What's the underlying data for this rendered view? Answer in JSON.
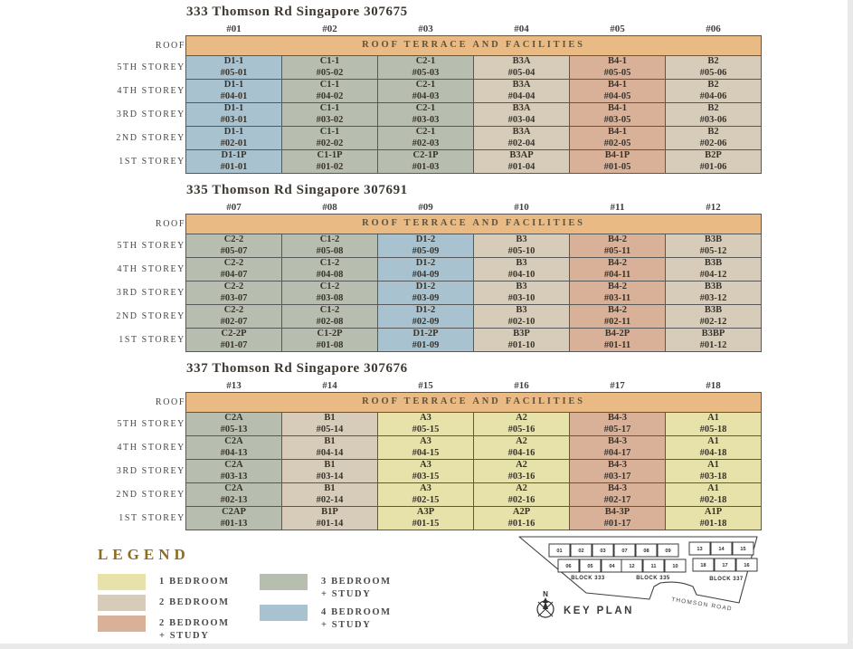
{
  "colors": {
    "roof": "#e9ba83",
    "br1": "#e7e2a9",
    "br2": "#d6ccb9",
    "br2s": "#d9b098",
    "br3s": "#b7beb0",
    "br4s": "#a9c2cf",
    "border": "#585858",
    "legend_title": "#8e6c1c"
  },
  "blocks": [
    {
      "title": "333 Thomson Rd Singapore 307675",
      "columns": [
        "#01",
        "#02",
        "#03",
        "#04",
        "#05",
        "#06"
      ],
      "roof_label": "ROOF",
      "roof_text": "ROOF TERRACE AND FACILITIES",
      "rows": [
        {
          "label": "5TH STOREY",
          "cells": [
            [
              "D1-1",
              "#05-01",
              "4brs"
            ],
            [
              "C1-1",
              "#05-02",
              "3brs"
            ],
            [
              "C2-1",
              "#05-03",
              "3brs"
            ],
            [
              "B3A",
              "#05-04",
              "2br"
            ],
            [
              "B4-1",
              "#05-05",
              "2brs"
            ],
            [
              "B2",
              "#05-06",
              "2br"
            ]
          ]
        },
        {
          "label": "4TH STOREY",
          "cells": [
            [
              "D1-1",
              "#04-01",
              "4brs"
            ],
            [
              "C1-1",
              "#04-02",
              "3brs"
            ],
            [
              "C2-1",
              "#04-03",
              "3brs"
            ],
            [
              "B3A",
              "#04-04",
              "2br"
            ],
            [
              "B4-1",
              "#04-05",
              "2brs"
            ],
            [
              "B2",
              "#04-06",
              "2br"
            ]
          ]
        },
        {
          "label": "3RD STOREY",
          "cells": [
            [
              "D1-1",
              "#03-01",
              "4brs"
            ],
            [
              "C1-1",
              "#03-02",
              "3brs"
            ],
            [
              "C2-1",
              "#03-03",
              "3brs"
            ],
            [
              "B3A",
              "#03-04",
              "2br"
            ],
            [
              "B4-1",
              "#03-05",
              "2brs"
            ],
            [
              "B2",
              "#03-06",
              "2br"
            ]
          ]
        },
        {
          "label": "2ND STOREY",
          "cells": [
            [
              "D1-1",
              "#02-01",
              "4brs"
            ],
            [
              "C1-1",
              "#02-02",
              "3brs"
            ],
            [
              "C2-1",
              "#02-03",
              "3brs"
            ],
            [
              "B3A",
              "#02-04",
              "2br"
            ],
            [
              "B4-1",
              "#02-05",
              "2brs"
            ],
            [
              "B2",
              "#02-06",
              "2br"
            ]
          ]
        },
        {
          "label": "1ST STOREY",
          "cells": [
            [
              "D1-1P",
              "#01-01",
              "4brs"
            ],
            [
              "C1-1P",
              "#01-02",
              "3brs"
            ],
            [
              "C2-1P",
              "#01-03",
              "3brs"
            ],
            [
              "B3AP",
              "#01-04",
              "2br"
            ],
            [
              "B4-1P",
              "#01-05",
              "2brs"
            ],
            [
              "B2P",
              "#01-06",
              "2br"
            ]
          ]
        }
      ]
    },
    {
      "title": "335 Thomson Rd Singapore 307691",
      "columns": [
        "#07",
        "#08",
        "#09",
        "#10",
        "#11",
        "#12"
      ],
      "roof_label": "ROOF",
      "roof_text": "ROOF TERRACE AND FACILITIES",
      "rows": [
        {
          "label": "5TH STOREY",
          "cells": [
            [
              "C2-2",
              "#05-07",
              "3brs"
            ],
            [
              "C1-2",
              "#05-08",
              "3brs"
            ],
            [
              "D1-2",
              "#05-09",
              "4brs"
            ],
            [
              "B3",
              "#05-10",
              "2br"
            ],
            [
              "B4-2",
              "#05-11",
              "2brs"
            ],
            [
              "B3B",
              "#05-12",
              "2br"
            ]
          ]
        },
        {
          "label": "4TH STOREY",
          "cells": [
            [
              "C2-2",
              "#04-07",
              "3brs"
            ],
            [
              "C1-2",
              "#04-08",
              "3brs"
            ],
            [
              "D1-2",
              "#04-09",
              "4brs"
            ],
            [
              "B3",
              "#04-10",
              "2br"
            ],
            [
              "B4-2",
              "#04-11",
              "2brs"
            ],
            [
              "B3B",
              "#04-12",
              "2br"
            ]
          ]
        },
        {
          "label": "3RD STOREY",
          "cells": [
            [
              "C2-2",
              "#03-07",
              "3brs"
            ],
            [
              "C1-2",
              "#03-08",
              "3brs"
            ],
            [
              "D1-2",
              "#03-09",
              "4brs"
            ],
            [
              "B3",
              "#03-10",
              "2br"
            ],
            [
              "B4-2",
              "#03-11",
              "2brs"
            ],
            [
              "B3B",
              "#03-12",
              "2br"
            ]
          ]
        },
        {
          "label": "2ND STOREY",
          "cells": [
            [
              "C2-2",
              "#02-07",
              "3brs"
            ],
            [
              "C1-2",
              "#02-08",
              "3brs"
            ],
            [
              "D1-2",
              "#02-09",
              "4brs"
            ],
            [
              "B3",
              "#02-10",
              "2br"
            ],
            [
              "B4-2",
              "#02-11",
              "2brs"
            ],
            [
              "B3B",
              "#02-12",
              "2br"
            ]
          ]
        },
        {
          "label": "1ST STOREY",
          "cells": [
            [
              "C2-2P",
              "#01-07",
              "3brs"
            ],
            [
              "C1-2P",
              "#01-08",
              "3brs"
            ],
            [
              "D1-2P",
              "#01-09",
              "4brs"
            ],
            [
              "B3P",
              "#01-10",
              "2br"
            ],
            [
              "B4-2P",
              "#01-11",
              "2brs"
            ],
            [
              "B3BP",
              "#01-12",
              "2br"
            ]
          ]
        }
      ]
    },
    {
      "title": "337 Thomson Rd Singapore 307676",
      "columns": [
        "#13",
        "#14",
        "#15",
        "#16",
        "#17",
        "#18"
      ],
      "roof_label": "ROOF",
      "roof_text": "ROOF TERRACE AND FACILITIES",
      "rows": [
        {
          "label": "5TH STOREY",
          "cells": [
            [
              "C2A",
              "#05-13",
              "3brs"
            ],
            [
              "B1",
              "#05-14",
              "2br"
            ],
            [
              "A3",
              "#05-15",
              "1br"
            ],
            [
              "A2",
              "#05-16",
              "1br"
            ],
            [
              "B4-3",
              "#05-17",
              "2brs"
            ],
            [
              "A1",
              "#05-18",
              "1br"
            ]
          ]
        },
        {
          "label": "4TH STOREY",
          "cells": [
            [
              "C2A",
              "#04-13",
              "3brs"
            ],
            [
              "B1",
              "#04-14",
              "2br"
            ],
            [
              "A3",
              "#04-15",
              "1br"
            ],
            [
              "A2",
              "#04-16",
              "1br"
            ],
            [
              "B4-3",
              "#04-17",
              "2brs"
            ],
            [
              "A1",
              "#04-18",
              "1br"
            ]
          ]
        },
        {
          "label": "3RD STOREY",
          "cells": [
            [
              "C2A",
              "#03-13",
              "3brs"
            ],
            [
              "B1",
              "#03-14",
              "2br"
            ],
            [
              "A3",
              "#03-15",
              "1br"
            ],
            [
              "A2",
              "#03-16",
              "1br"
            ],
            [
              "B4-3",
              "#03-17",
              "2brs"
            ],
            [
              "A1",
              "#03-18",
              "1br"
            ]
          ]
        },
        {
          "label": "2ND STOREY",
          "cells": [
            [
              "C2A",
              "#02-13",
              "3brs"
            ],
            [
              "B1",
              "#02-14",
              "2br"
            ],
            [
              "A3",
              "#02-15",
              "1br"
            ],
            [
              "A2",
              "#02-16",
              "1br"
            ],
            [
              "B4-3",
              "#02-17",
              "2brs"
            ],
            [
              "A1",
              "#02-18",
              "1br"
            ]
          ]
        },
        {
          "label": "1ST STOREY",
          "cells": [
            [
              "C2AP",
              "#01-13",
              "3brs"
            ],
            [
              "B1P",
              "#01-14",
              "2br"
            ],
            [
              "A3P",
              "#01-15",
              "1br"
            ],
            [
              "A2P",
              "#01-16",
              "1br"
            ],
            [
              "B4-3P",
              "#01-17",
              "2brs"
            ],
            [
              "A1P",
              "#01-18",
              "1br"
            ]
          ]
        }
      ]
    }
  ],
  "legend": {
    "title": "LEGEND",
    "columns": [
      [
        {
          "line1": "1 BEDROOM",
          "line2": "",
          "cat": "1br"
        },
        {
          "line1": "2 BEDROOM",
          "line2": "",
          "cat": "2br"
        },
        {
          "line1": "2 BEDROOM",
          "line2": "+ STUDY",
          "cat": "2brs"
        }
      ],
      [
        {
          "line1": "3 BEDROOM",
          "line2": "+ STUDY",
          "cat": "3brs"
        },
        {
          "line1": "4 BEDROOM",
          "line2": "+ STUDY",
          "cat": "4brs"
        }
      ]
    ]
  },
  "keyplan": {
    "title": "KEY PLAN",
    "north": "N",
    "road": "THOMSON ROAD",
    "blocks": [
      {
        "label": "BLOCK 333",
        "top": [
          "01",
          "02",
          "03"
        ],
        "bottom": [
          "06",
          "05",
          "04"
        ]
      },
      {
        "label": "BLOCK 335",
        "top": [
          "07",
          "08",
          "09"
        ],
        "bottom": [
          "12",
          "11",
          "10"
        ]
      },
      {
        "label": "BLOCK 337",
        "top": [
          "13",
          "14",
          "15"
        ],
        "bottom": [
          "18",
          "17",
          "16"
        ]
      }
    ]
  }
}
